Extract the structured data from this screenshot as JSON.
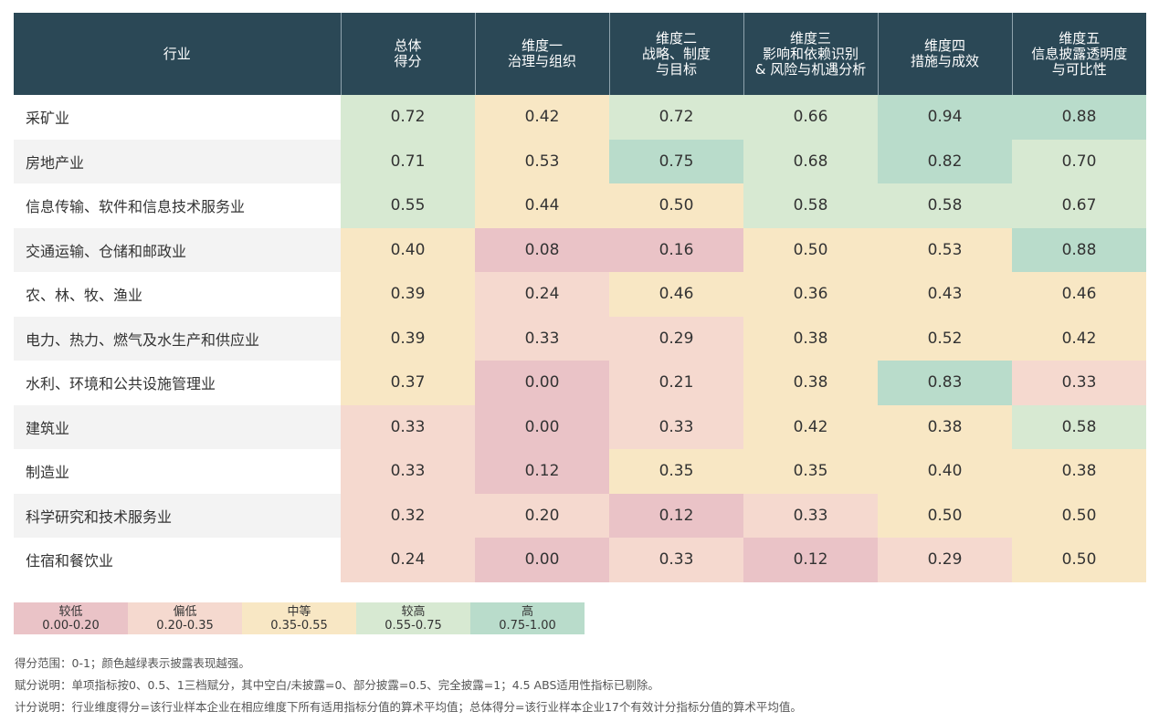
{
  "chart_data": {
    "type": "heatmap",
    "columns": [
      "行业",
      "总体\n得分",
      "维度一\n治理与组织",
      "维度二\n战略、制度\n与目标",
      "维度三\n影响和依赖识别\n& 风险与机遇分析",
      "维度四\n措施与成效",
      "维度五\n信息披露透明度\n与可比性"
    ],
    "rows": [
      {
        "industry": "采矿业",
        "values": [
          0.72,
          0.42,
          0.72,
          0.66,
          0.94,
          0.88
        ]
      },
      {
        "industry": "房地产业",
        "values": [
          0.71,
          0.53,
          0.75,
          0.68,
          0.82,
          0.7
        ]
      },
      {
        "industry": "信息传输、软件和信息技术服务业",
        "values": [
          0.55,
          0.44,
          0.5,
          0.58,
          0.58,
          0.67
        ]
      },
      {
        "industry": "交通运输、仓储和邮政业",
        "values": [
          0.4,
          0.08,
          0.16,
          0.5,
          0.53,
          0.88
        ]
      },
      {
        "industry": "农、林、牧、渔业",
        "values": [
          0.39,
          0.24,
          0.46,
          0.36,
          0.43,
          0.46
        ]
      },
      {
        "industry": "电力、热力、燃气及水生产和供应业",
        "values": [
          0.39,
          0.33,
          0.29,
          0.38,
          0.52,
          0.42
        ]
      },
      {
        "industry": "水利、环境和公共设施管理业",
        "values": [
          0.37,
          0.0,
          0.21,
          0.38,
          0.83,
          0.33
        ]
      },
      {
        "industry": "建筑业",
        "values": [
          0.33,
          0.0,
          0.33,
          0.42,
          0.38,
          0.58
        ]
      },
      {
        "industry": "制造业",
        "values": [
          0.33,
          0.12,
          0.35,
          0.35,
          0.4,
          0.38
        ]
      },
      {
        "industry": "科学研究和技术服务业",
        "values": [
          0.32,
          0.2,
          0.12,
          0.33,
          0.5,
          0.5
        ]
      },
      {
        "industry": "住宿和餐饮业",
        "values": [
          0.24,
          0.0,
          0.33,
          0.12,
          0.29,
          0.5
        ]
      }
    ],
    "legend": [
      {
        "label": "较低",
        "range": "0.00-0.20",
        "min": 0.0,
        "max": 0.2,
        "color": "#eac3c7"
      },
      {
        "label": "偏低",
        "range": "0.20-0.35",
        "min": 0.2,
        "max": 0.35,
        "color": "#f5d9cf"
      },
      {
        "label": "中等",
        "range": "0.35-0.55",
        "min": 0.35,
        "max": 0.55,
        "color": "#f8e7c4"
      },
      {
        "label": "较高",
        "range": "0.55-0.75",
        "min": 0.55,
        "max": 0.75,
        "color": "#d7e9d2"
      },
      {
        "label": "高",
        "range": "0.75-1.00",
        "min": 0.75,
        "max": 1.0,
        "color": "#b9dccb"
      }
    ],
    "header_color": "#2b4856"
  },
  "notes": [
    "得分范围：0-1；颜色越绿表示披露表现越强。",
    "赋分说明：单项指标按0、0.5、1三档赋分，其中空白/未披露=0、部分披露=0.5、完全披露=1；4.5 ABS适用性指标已剔除。",
    "计分说明：行业维度得分=该行业样本企业在相应维度下所有适用指标分值的算术平均值；总体得分=该行业样本企业17个有效计分指标分值的算术平均值。"
  ]
}
